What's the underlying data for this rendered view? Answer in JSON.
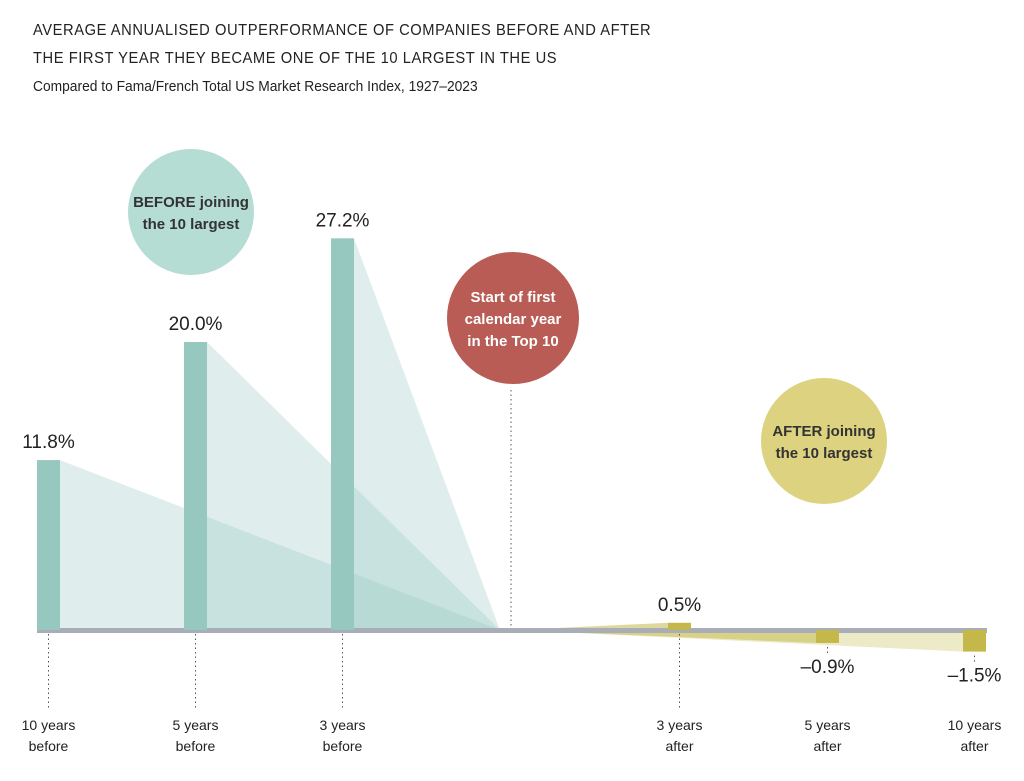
{
  "chart_data": {
    "type": "bar",
    "title": "AVERAGE ANNUALISED OUTPERFORMANCE OF COMPANIES BEFORE AND AFTER",
    "title_line2": "THE FIRST YEAR THEY BECAME ONE OF THE 10 LARGEST IN THE US",
    "subtitle": "Compared to Fama/French Total US Market Research Index, 1927–2023",
    "categories": [
      [
        "10 years",
        "before"
      ],
      [
        "5 years",
        "before"
      ],
      [
        "3 years",
        "before"
      ],
      [
        "3 years",
        "after"
      ],
      [
        "5 years",
        "after"
      ],
      [
        "10 years",
        "after"
      ]
    ],
    "values": [
      11.8,
      20.0,
      27.2,
      0.5,
      -0.9,
      -1.5
    ],
    "value_labels": [
      "11.8%",
      "20.0%",
      "27.2%",
      "0.5%",
      "–0.9%",
      "–1.5%"
    ],
    "ylim": [
      -2,
      30
    ],
    "annotations": {
      "before": [
        "BEFORE joining",
        "the 10 largest"
      ],
      "start": [
        "Start of first",
        "calendar year",
        "in the Top 10"
      ],
      "after": [
        "AFTER joining",
        "the 10 largest"
      ]
    },
    "colors": {
      "before": "#96c8bf",
      "after": "#c4b84a",
      "start": "#b85c55",
      "axis": "#a8adb8",
      "before_circle": "#b5ddd4",
      "after_circle": "#dcd27f"
    }
  }
}
